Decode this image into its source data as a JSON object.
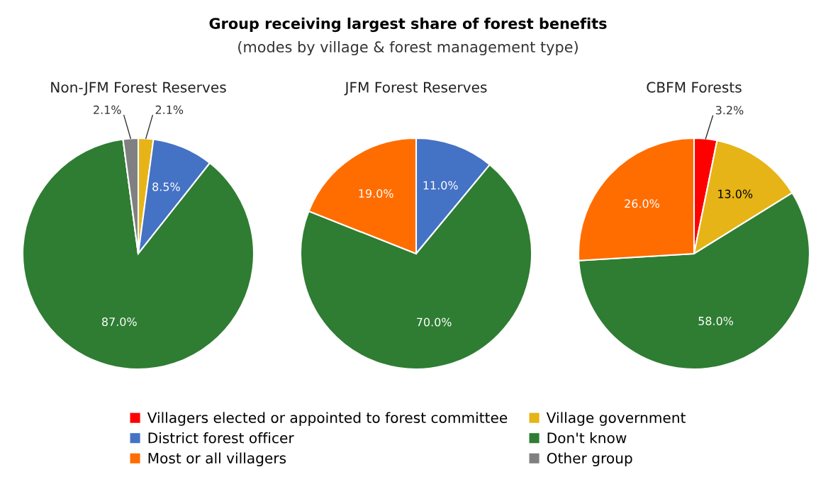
{
  "chart_data": [
    {
      "type": "other",
      "title": "Group receiving largest share of forest benefits",
      "subtitle": "(modes by village & forest management type)"
    },
    {
      "type": "pie",
      "title": "Non-JFM Forest Reserves",
      "categories": [
        "Villagers elected or appointed to forest committee",
        "Village government",
        "District forest officer",
        "Don't know",
        "Most or all villagers",
        "Other group"
      ],
      "values": [
        0,
        2.1,
        8.5,
        87.0,
        0,
        2.1
      ],
      "colors": [
        "#ff0000",
        "#e6b416",
        "#4472c4",
        "#2e7d32",
        "#ff6d00",
        "#808080"
      ],
      "value_labels": [
        null,
        "2.1%",
        "8.5%",
        "87.0%",
        null,
        "2.1%"
      ],
      "legend": "bottom"
    },
    {
      "type": "pie",
      "title": "JFM Forest Reserves",
      "categories": [
        null,
        null,
        null
      ],
      "values": [
        11.0,
        70.0,
        19.0
      ],
      "colors": [
        "#4472c4",
        "#2e7d32",
        "#ff6d00"
      ],
      "value_labels": [
        "11.0%",
        "70.0%",
        "19.0%"
      ]
    },
    {
      "type": "pie",
      "title": "CBFM Forests",
      "categories": [
        null,
        null,
        null,
        null
      ],
      "values": [
        3.2,
        13.0,
        58.0,
        26.0
      ],
      "colors": [
        "#ff0000",
        "#e6b416",
        "#2e7d32",
        "#ff6d00"
      ],
      "value_labels": [
        "3.2%",
        "13.0%",
        "58.0%",
        "26.0%"
      ]
    }
  ]
}
